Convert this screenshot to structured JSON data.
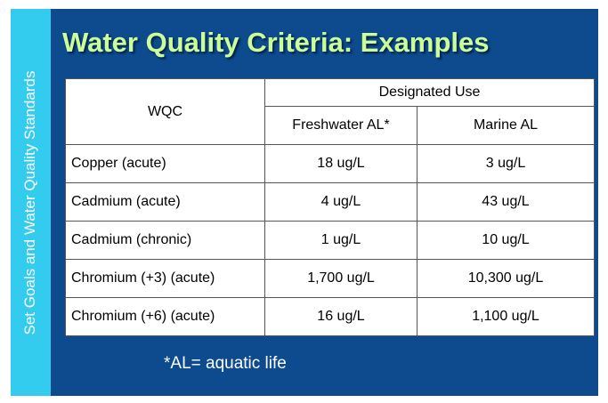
{
  "sidebar": "Set Goals and Water Quality Standards",
  "title": "Water Quality Criteria: Examples",
  "table": {
    "header": {
      "first": "WQC",
      "group": "Designated Use",
      "columns": [
        "Freshwater AL*",
        "Marine AL"
      ]
    },
    "rows": [
      [
        "Copper (acute)",
        "18 ug/L",
        "3 ug/L"
      ],
      [
        "Cadmium (acute)",
        "4 ug/L",
        "43 ug/L"
      ],
      [
        "Cadmium (chronic)",
        "1 ug/L",
        "10 ug/L"
      ],
      [
        "Chromium (+3) (acute)",
        "1,700 ug/L",
        "10,300 ug/L"
      ],
      [
        "Chromium (+6) (acute)",
        "16 ug/L",
        "1,100 ug/L"
      ]
    ]
  },
  "footnote": "*AL= aquatic life"
}
